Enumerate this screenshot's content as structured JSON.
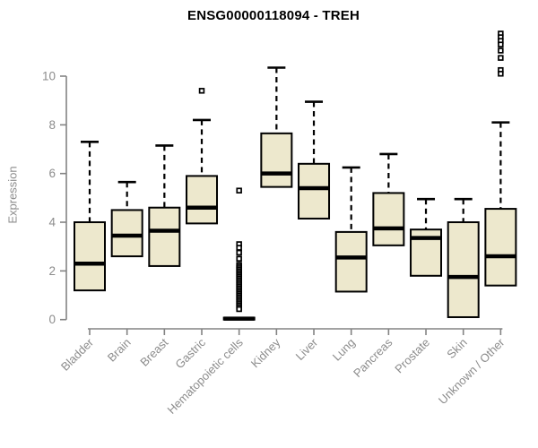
{
  "chart_data": {
    "type": "boxplot",
    "title": "ENSG00000118094 - TREH",
    "xlabel": "",
    "ylabel": "Expression",
    "ylim": [
      0,
      10
    ],
    "yticks": [
      0,
      2,
      4,
      6,
      8,
      10
    ],
    "grid": false,
    "legend": "none",
    "categories": [
      "Bladder",
      "Brain",
      "Breast",
      "Gastric",
      "Hematopoietic cells",
      "Kidney",
      "Liver",
      "Lung",
      "Pancreas",
      "Prostate",
      "Skin",
      "Unknown / Other"
    ],
    "series": [
      {
        "name": "Bladder",
        "whisker_low": 0.15,
        "q1": 1.2,
        "median": 2.3,
        "q3": 4.0,
        "whisker_high": 7.3,
        "outliers": []
      },
      {
        "name": "Brain",
        "whisker_low": 0.15,
        "q1": 2.6,
        "median": 3.45,
        "q3": 4.5,
        "whisker_high": 5.65,
        "outliers": []
      },
      {
        "name": "Breast",
        "whisker_low": 0.15,
        "q1": 2.2,
        "median": 3.65,
        "q3": 4.6,
        "whisker_high": 7.15,
        "outliers": []
      },
      {
        "name": "Gastric",
        "whisker_low": 2.45,
        "q1": 3.95,
        "median": 4.6,
        "q3": 5.9,
        "whisker_high": 8.2,
        "outliers": [
          9.4
        ]
      },
      {
        "name": "Hematopoietic cells",
        "whisker_low": 0.0,
        "q1": 0.0,
        "median": 0.04,
        "q3": 0.08,
        "whisker_high": 0.08,
        "outliers": [
          5.3,
          3.1,
          2.95,
          2.75,
          2.5,
          2.25,
          2.18,
          2.11,
          2.04,
          1.97,
          1.9,
          1.83,
          1.76,
          1.69,
          1.62,
          1.55,
          1.48,
          1.41,
          1.34,
          1.27,
          1.2,
          1.13,
          1.06,
          0.99,
          0.92,
          0.85,
          0.78,
          0.71,
          0.64,
          0.57,
          0.5,
          0.43
        ]
      },
      {
        "name": "Kidney",
        "whisker_low": 3.75,
        "q1": 5.45,
        "median": 6.0,
        "q3": 7.65,
        "whisker_high": 10.35,
        "outliers": []
      },
      {
        "name": "Liver",
        "whisker_low": 1.5,
        "q1": 4.15,
        "median": 5.4,
        "q3": 6.4,
        "whisker_high": 8.95,
        "outliers": []
      },
      {
        "name": "Lung",
        "whisker_low": 0.2,
        "q1": 1.15,
        "median": 2.55,
        "q3": 3.6,
        "whisker_high": 6.25,
        "outliers": []
      },
      {
        "name": "Pancreas",
        "whisker_low": 0.15,
        "q1": 3.05,
        "median": 3.75,
        "q3": 5.2,
        "whisker_high": 6.8,
        "outliers": []
      },
      {
        "name": "Prostate",
        "whisker_low": 0.2,
        "q1": 1.8,
        "median": 3.35,
        "q3": 3.7,
        "whisker_high": 4.95,
        "outliers": []
      },
      {
        "name": "Skin",
        "whisker_low": 0.1,
        "q1": 0.1,
        "median": 1.75,
        "q3": 4.0,
        "whisker_high": 4.95,
        "outliers": []
      },
      {
        "name": "Unknown / Other",
        "whisker_low": 0.2,
        "q1": 1.4,
        "median": 2.6,
        "q3": 4.55,
        "whisker_high": 8.1,
        "outliers": [
          11.75,
          11.6,
          11.45,
          11.3,
          11.05,
          10.75,
          10.25,
          10.1
        ]
      }
    ],
    "colors": {
      "box_fill": "#EDE8CD",
      "box_border": "#000000",
      "median": "#000000",
      "whisker": "#000000",
      "outlier": "#000000",
      "axis": "#838383",
      "tick_label": "#8c8c8c",
      "title": "#000000"
    }
  }
}
